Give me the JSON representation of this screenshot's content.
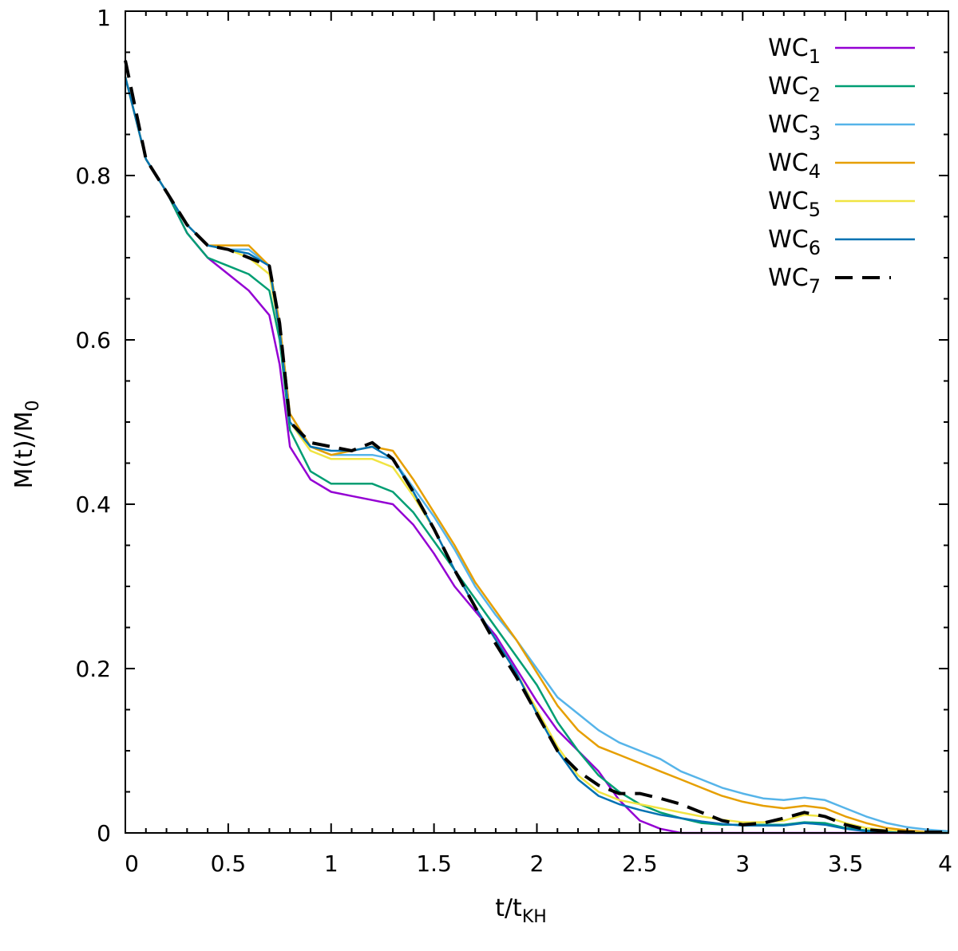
{
  "chart_data": {
    "type": "line",
    "title": "",
    "xlabel": {
      "base": "t/t",
      "sub": "KH"
    },
    "ylabel": {
      "base": "M(t)/M",
      "sub": "0"
    },
    "xlim": [
      0,
      4
    ],
    "ylim": [
      0,
      1
    ],
    "xticks": [
      "0",
      "0.5",
      "1",
      "1.5",
      "2",
      "2.5",
      "3",
      "3.5",
      "4"
    ],
    "yticks": [
      "0",
      "0.2",
      "0.4",
      "0.6",
      "0.8",
      "1"
    ],
    "legend_position": "top-right",
    "x": [
      0,
      0.1,
      0.2,
      0.3,
      0.4,
      0.5,
      0.6,
      0.7,
      0.75,
      0.8,
      0.9,
      1.0,
      1.1,
      1.2,
      1.3,
      1.4,
      1.5,
      1.6,
      1.7,
      1.8,
      1.9,
      2.0,
      2.1,
      2.2,
      2.3,
      2.4,
      2.5,
      2.6,
      2.7,
      2.8,
      2.9,
      3.0,
      3.1,
      3.2,
      3.3,
      3.4,
      3.5,
      3.6,
      3.7,
      3.8,
      3.9,
      4.0
    ],
    "series": [
      {
        "name_base": "WC",
        "name_sub": "1",
        "color": "#9400d3",
        "dashed": false,
        "values": [
          0.92,
          0.82,
          0.78,
          0.73,
          0.7,
          0.68,
          0.66,
          0.63,
          0.57,
          0.47,
          0.43,
          0.415,
          0.41,
          0.405,
          0.4,
          0.375,
          0.34,
          0.3,
          0.27,
          0.24,
          0.2,
          0.16,
          0.125,
          0.1,
          0.075,
          0.04,
          0.015,
          0.005,
          0.0,
          0.0,
          0.0,
          0.0,
          0.0,
          0.0,
          0.0,
          0.0,
          0.0,
          0.0,
          0.0,
          0.0,
          0.0,
          0.0
        ]
      },
      {
        "name_base": "WC",
        "name_sub": "2",
        "color": "#009e73",
        "dashed": false,
        "values": [
          0.92,
          0.82,
          0.78,
          0.73,
          0.7,
          0.69,
          0.68,
          0.66,
          0.6,
          0.49,
          0.44,
          0.425,
          0.425,
          0.425,
          0.415,
          0.39,
          0.355,
          0.32,
          0.285,
          0.25,
          0.215,
          0.18,
          0.135,
          0.1,
          0.07,
          0.05,
          0.035,
          0.025,
          0.018,
          0.012,
          0.01,
          0.01,
          0.01,
          0.01,
          0.013,
          0.012,
          0.006,
          0.003,
          0.002,
          0.001,
          0.001,
          0.001
        ]
      },
      {
        "name_base": "WC",
        "name_sub": "3",
        "color": "#56b4e9",
        "dashed": false,
        "values": [
          0.92,
          0.82,
          0.78,
          0.74,
          0.715,
          0.71,
          0.71,
          0.69,
          0.62,
          0.51,
          0.47,
          0.46,
          0.46,
          0.46,
          0.455,
          0.42,
          0.385,
          0.345,
          0.3,
          0.265,
          0.235,
          0.2,
          0.165,
          0.145,
          0.125,
          0.11,
          0.1,
          0.09,
          0.075,
          0.065,
          0.055,
          0.048,
          0.042,
          0.04,
          0.043,
          0.04,
          0.03,
          0.02,
          0.012,
          0.007,
          0.004,
          0.002
        ]
      },
      {
        "name_base": "WC",
        "name_sub": "4",
        "color": "#e69f00",
        "dashed": false,
        "values": [
          0.92,
          0.82,
          0.78,
          0.74,
          0.715,
          0.715,
          0.715,
          0.69,
          0.62,
          0.51,
          0.47,
          0.46,
          0.465,
          0.47,
          0.465,
          0.43,
          0.39,
          0.35,
          0.305,
          0.27,
          0.235,
          0.195,
          0.155,
          0.125,
          0.105,
          0.095,
          0.085,
          0.075,
          0.065,
          0.055,
          0.045,
          0.038,
          0.033,
          0.03,
          0.033,
          0.03,
          0.02,
          0.012,
          0.006,
          0.003,
          0.001,
          0.0
        ]
      },
      {
        "name_base": "WC",
        "name_sub": "5",
        "color": "#f0e442",
        "dashed": false,
        "values": [
          0.92,
          0.82,
          0.78,
          0.74,
          0.715,
          0.71,
          0.7,
          0.68,
          0.61,
          0.5,
          0.465,
          0.455,
          0.455,
          0.455,
          0.445,
          0.41,
          0.37,
          0.32,
          0.275,
          0.235,
          0.195,
          0.15,
          0.105,
          0.07,
          0.05,
          0.04,
          0.035,
          0.03,
          0.025,
          0.02,
          0.016,
          0.013,
          0.013,
          0.015,
          0.022,
          0.02,
          0.012,
          0.006,
          0.003,
          0.001,
          0.0,
          0.0
        ]
      },
      {
        "name_base": "WC",
        "name_sub": "6",
        "color": "#0072b2",
        "dashed": false,
        "values": [
          0.92,
          0.82,
          0.78,
          0.74,
          0.715,
          0.71,
          0.705,
          0.69,
          0.61,
          0.5,
          0.47,
          0.465,
          0.465,
          0.47,
          0.455,
          0.415,
          0.37,
          0.32,
          0.275,
          0.235,
          0.195,
          0.145,
          0.1,
          0.065,
          0.045,
          0.035,
          0.028,
          0.022,
          0.018,
          0.014,
          0.011,
          0.009,
          0.009,
          0.009,
          0.012,
          0.01,
          0.005,
          0.002,
          0.001,
          0.0,
          0.0,
          0.0
        ]
      },
      {
        "name_base": "WC",
        "name_sub": "7",
        "color": "#000000",
        "dashed": true,
        "values": [
          0.94,
          0.82,
          0.78,
          0.74,
          0.715,
          0.71,
          0.7,
          0.69,
          0.62,
          0.5,
          0.475,
          0.47,
          0.465,
          0.475,
          0.455,
          0.415,
          0.37,
          0.32,
          0.275,
          0.23,
          0.19,
          0.145,
          0.1,
          0.075,
          0.058,
          0.048,
          0.048,
          0.042,
          0.035,
          0.025,
          0.015,
          0.01,
          0.012,
          0.018,
          0.025,
          0.02,
          0.01,
          0.004,
          0.002,
          0.001,
          0.001,
          0.001
        ]
      }
    ]
  }
}
